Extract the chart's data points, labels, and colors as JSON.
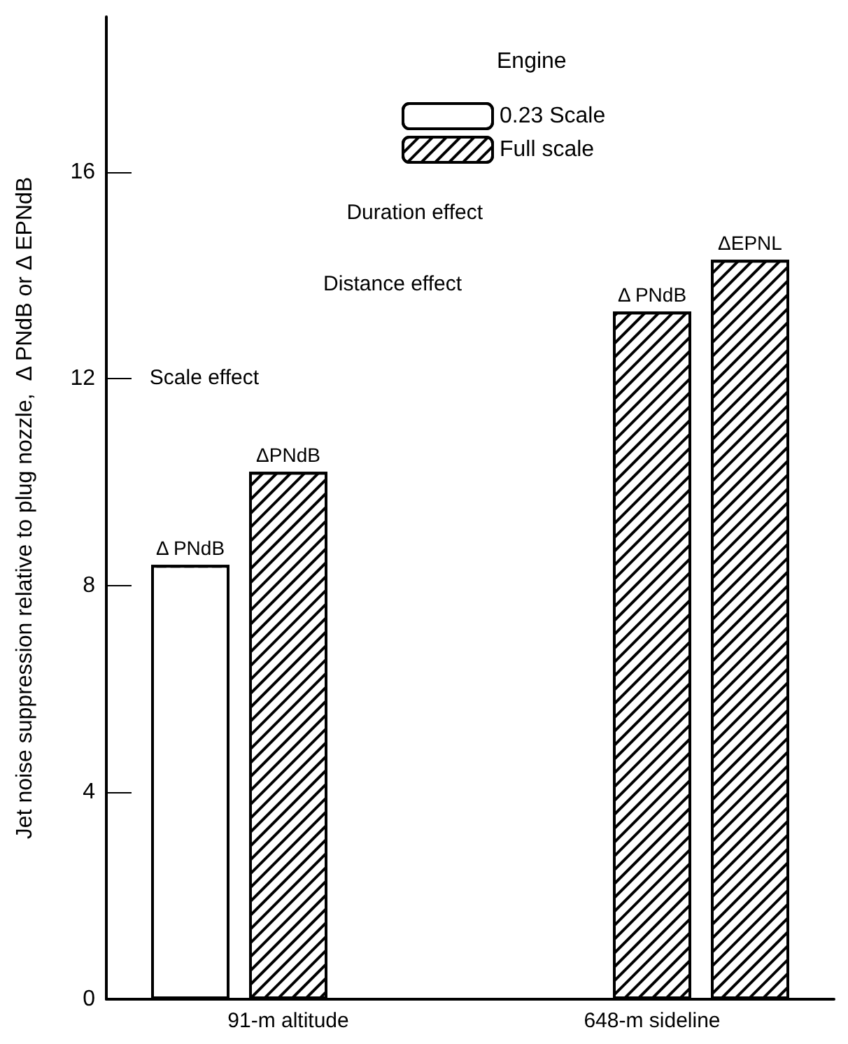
{
  "chart_data": {
    "type": "bar",
    "ylabel": "Jet noise suppression relative to plug nozzle,  Δ PNdB or Δ EPNdB",
    "legend_title": "Engine",
    "categories": [
      "91-m altitude",
      "648-m sideline"
    ],
    "series": [
      {
        "name": "0.23 Scale",
        "color": "#ffffff",
        "values": [
          8.4,
          null
        ],
        "value_labels": [
          "Δ PNdB",
          null
        ]
      },
      {
        "name": "Full scale",
        "color": "#000000",
        "values": [
          10.2,
          13.3
        ],
        "value_labels": [
          "ΔPNdB",
          "Δ PNdB"
        ]
      },
      {
        "color": "#000000",
        "values": [
          null,
          14.3
        ],
        "value_labels": [
          null,
          "ΔEPNL"
        ]
      }
    ],
    "ylim": [
      0,
      19
    ],
    "yticks": [
      0,
      4,
      8,
      12,
      16
    ],
    "grid": false,
    "legend": "top right",
    "annotations": [
      "Scale effect",
      "Distance effect",
      "Duration effect"
    ]
  }
}
